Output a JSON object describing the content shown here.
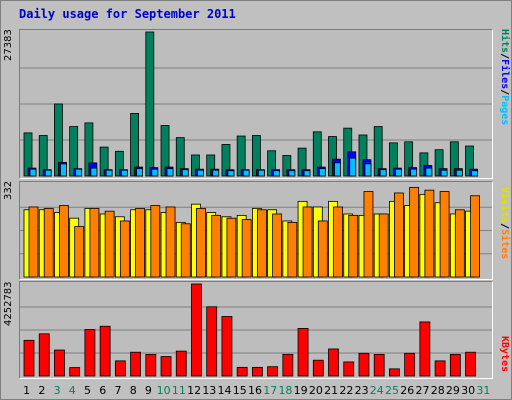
{
  "chart_data": {
    "type": "bar",
    "title": "Daily usage for September 2011",
    "categories": [
      "1",
      "2",
      "3",
      "4",
      "5",
      "6",
      "7",
      "8",
      "9",
      "10",
      "11",
      "12",
      "13",
      "14",
      "15",
      "16",
      "17",
      "18",
      "19",
      "20",
      "21",
      "22",
      "23",
      "24",
      "25",
      "26",
      "27",
      "28",
      "29",
      "30",
      "31"
    ],
    "weekend_days": [
      "3",
      "4",
      "10",
      "11",
      "17",
      "18",
      "24",
      "25",
      "31"
    ],
    "panels": [
      {
        "id": "hits",
        "ymax_label": "27383",
        "ymax": 27383,
        "series": [
          {
            "name": "Hits",
            "color": "#00805c",
            "values": [
              8200,
              7700,
              13700,
              9400,
              10100,
              5500,
              4700,
              11900,
              27383,
              9600,
              7300,
              4000,
              4000,
              6000,
              7600,
              7700,
              4800,
              3900,
              5300,
              8400,
              7500,
              9100,
              7800,
              9400,
              6300,
              6500,
              4400,
              5000,
              6500,
              5700,
              0
            ]
          },
          {
            "name": "Files",
            "color": "#0000ff",
            "values": [
              1500,
              1200,
              2600,
              1400,
              2500,
              1200,
              1200,
              1700,
              1600,
              1700,
              1400,
              1300,
              1300,
              1200,
              1200,
              1200,
              1200,
              1200,
              1200,
              1700,
              3200,
              4600,
              3100,
              1400,
              1500,
              1600,
              2000,
              1400,
              1400,
              1300,
              0
            ]
          },
          {
            "name": "Pages",
            "color": "#00c0ff",
            "values": [
              1300,
              1100,
              2300,
              1300,
              1500,
              1100,
              1100,
              1400,
              1300,
              1400,
              1200,
              1100,
              1100,
              1000,
              1100,
              1100,
              1000,
              1000,
              1000,
              1400,
              2500,
              3400,
              2300,
              1200,
              1300,
              1300,
              1500,
              1100,
              1100,
              1000,
              0
            ]
          }
        ],
        "legend": [
          {
            "text": "Hits",
            "color": "#00805c"
          },
          {
            "text": "Files",
            "color": "#0000ff"
          },
          {
            "text": "Pages",
            "color": "#00c0ff"
          }
        ]
      },
      {
        "id": "sites",
        "ymax_label": "332",
        "ymax": 332,
        "series": [
          {
            "name": "Visits",
            "color": "#ffff00",
            "values": [
              240,
              240,
              230,
              210,
              245,
              225,
              215,
              240,
              240,
              230,
              195,
              260,
              230,
              215,
              220,
              245,
              240,
              200,
              270,
              250,
              270,
              225,
              220,
              225,
              270,
              255,
              295,
              265,
              225,
              235,
              0
            ]
          },
          {
            "name": "Sites",
            "color": "#ff8000",
            "values": [
              250,
              245,
              255,
              180,
              245,
              235,
              200,
              245,
              255,
              250,
              190,
              245,
              220,
              210,
              205,
              240,
              225,
              195,
              250,
              200,
              250,
              220,
              305,
              225,
              300,
              320,
              310,
              305,
              240,
              290,
              0
            ]
          }
        ],
        "legend": [
          {
            "text": "Visits",
            "color": "#e0e000"
          },
          {
            "text": "Sites",
            "color": "#ff8000"
          }
        ]
      },
      {
        "id": "kbytes",
        "ymax_label": "4252783",
        "ymax": 4252783,
        "series": [
          {
            "name": "KBytes",
            "color": "#ff0000",
            "values": [
              1650000,
              1950000,
              1200000,
              390000,
              2150000,
              2300000,
              700000,
              1100000,
              1000000,
              900000,
              1150000,
              4252783,
              3200000,
              2750000,
              400000,
              400000,
              430000,
              1000000,
              2200000,
              730000,
              1250000,
              650000,
              1050000,
              1000000,
              330000,
              1050000,
              2500000,
              700000,
              1000000,
              1100000,
              0
            ]
          }
        ],
        "legend": [
          {
            "text": "KBytes",
            "color": "#ff0000"
          }
        ]
      }
    ],
    "colors": {
      "weekday_label": "#000000",
      "weekend_label": "#00805c",
      "panel_bg": "#bdbdbd",
      "gridline": "#808080"
    }
  }
}
